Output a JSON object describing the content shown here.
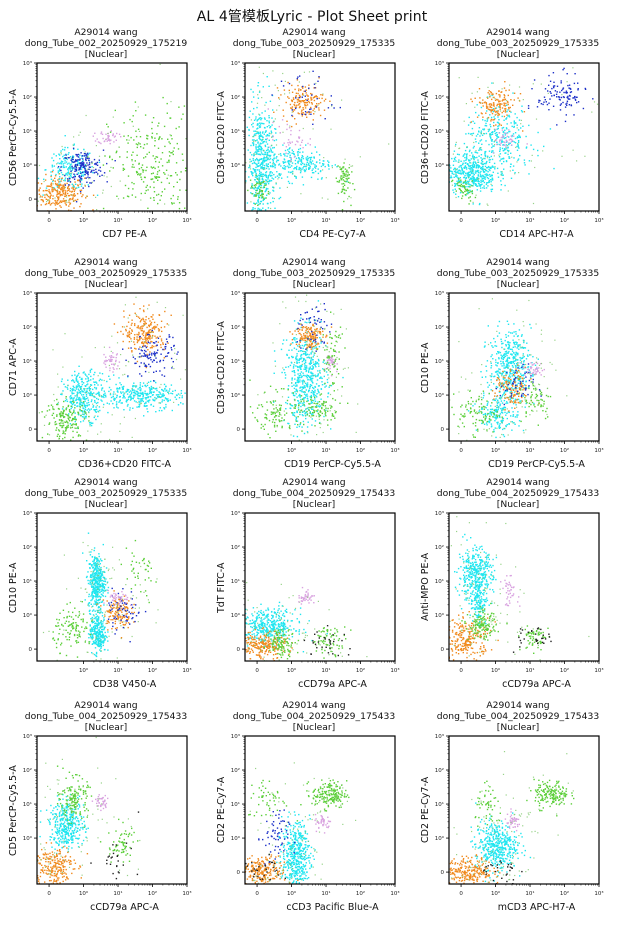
{
  "page": {
    "title": "AL 4管模板Lyric - Plot Sheet print"
  },
  "colors": {
    "cyan": "#1fe6f0",
    "orange": "#f08a1e",
    "green": "#5ccf3a",
    "blue": "#1c2fc8",
    "pink": "#d9a3e0",
    "teal": "#6bc7c0",
    "black": "#222222",
    "lightgreen": "#7ec86a"
  },
  "chart_data": [
    {
      "type": "scatter",
      "title_lines": [
        "A29014 wang",
        "dong_Tube_002_20250929_175219",
        "[Nuclear]"
      ],
      "xlabel": "CD7 PE-A",
      "ylabel": "CD56 PerCP-Cy5.5-A",
      "x_ticks": [
        "0",
        "10⁰",
        "10¹",
        "10²",
        "10³"
      ],
      "y_ticks": [
        "0",
        "10⁰",
        "10¹",
        "10²",
        "10³"
      ],
      "axis_scale": "biexponential",
      "populations": [
        {
          "name": "orange",
          "x": 0.3,
          "y": 0.2,
          "spread": [
            0.35,
            0.25
          ],
          "n": 260
        },
        {
          "name": "cyan",
          "x": 0.6,
          "y": 0.9,
          "spread": [
            0.35,
            0.3
          ],
          "n": 180
        },
        {
          "name": "blue",
          "x": 0.95,
          "y": 0.95,
          "spread": [
            0.3,
            0.25
          ],
          "n": 170
        },
        {
          "name": "pink",
          "x": 5,
          "y": 7,
          "spread": [
            0.15,
            0.1
          ],
          "n": 40
        },
        {
          "name": "green",
          "x": 80,
          "y": 0.9,
          "spread": [
            0.6,
            0.9
          ],
          "n": 260
        }
      ]
    },
    {
      "type": "scatter",
      "title_lines": [
        "A29014 wang",
        "dong_Tube_003_20250929_175335",
        "[Nuclear]"
      ],
      "xlabel": "CD4 PE-Cy7-A",
      "ylabel": "CD36+CD20 FITC-A",
      "x_ticks": [
        "0",
        "10⁰",
        "10¹",
        "10²",
        "10³"
      ],
      "y_ticks": [
        "10⁰",
        "10¹",
        "10²",
        "10³"
      ],
      "axis_scale": "biexponential",
      "populations": [
        {
          "name": "cyan",
          "x": 0.1,
          "y": 1.0,
          "spread": [
            0.2,
            0.9
          ],
          "n": 520
        },
        {
          "name": "cyan",
          "x": 1.5,
          "y": 1.2,
          "spread": [
            0.5,
            0.25
          ],
          "n": 240
        },
        {
          "name": "orange",
          "x": 2.0,
          "y": 80,
          "spread": [
            0.3,
            0.25
          ],
          "n": 160
        },
        {
          "name": "blue",
          "x": 2.5,
          "y": 90,
          "spread": [
            0.4,
            0.4
          ],
          "n": 40
        },
        {
          "name": "pink",
          "x": 0.9,
          "y": 6,
          "spread": [
            0.3,
            0.25
          ],
          "n": 40
        },
        {
          "name": "green",
          "x": 30,
          "y": 0.6,
          "spread": [
            0.1,
            0.3
          ],
          "n": 70
        },
        {
          "name": "green",
          "x": 0.05,
          "y": 0.3,
          "spread": [
            0.15,
            0.2
          ],
          "n": 50
        }
      ]
    },
    {
      "type": "scatter",
      "title_lines": [
        "A29014 wang",
        "dong_Tube_003_20250929_175335",
        "[Nuclear]"
      ],
      "xlabel": "CD14 APC-H7-A",
      "ylabel": "CD36+CD20 FITC-A",
      "x_ticks": [
        "0",
        "10⁰",
        "10¹",
        "10²",
        "10³"
      ],
      "y_ticks": [
        "10⁰",
        "10¹",
        "10²",
        "10³"
      ],
      "axis_scale": "biexponential",
      "populations": [
        {
          "name": "cyan",
          "x": 0.3,
          "y": 0.8,
          "spread": [
            0.35,
            0.3
          ],
          "n": 420
        },
        {
          "name": "cyan",
          "x": 1.2,
          "y": 6,
          "spread": [
            0.5,
            0.5
          ],
          "n": 320
        },
        {
          "name": "orange",
          "x": 1.0,
          "y": 60,
          "spread": [
            0.3,
            0.25
          ],
          "n": 150
        },
        {
          "name": "pink",
          "x": 1.8,
          "y": 6,
          "spread": [
            0.15,
            0.15
          ],
          "n": 40
        },
        {
          "name": "blue",
          "x": 80,
          "y": 110,
          "spread": [
            0.35,
            0.3
          ],
          "n": 110
        },
        {
          "name": "green",
          "x": 0.05,
          "y": 0.3,
          "spread": [
            0.15,
            0.2
          ],
          "n": 50
        }
      ]
    },
    {
      "type": "scatter",
      "title_lines": [
        "A29014 wang",
        "dong_Tube_003_20250929_175335",
        "[Nuclear]"
      ],
      "xlabel": "CD36+CD20 FITC-A",
      "ylabel": "CD71 APC-A",
      "x_ticks": [
        "0",
        "10⁰",
        "10¹",
        "10²",
        "10³"
      ],
      "y_ticks": [
        "0",
        "10⁰",
        "10¹",
        "10²",
        "10³"
      ],
      "axis_scale": "biexponential",
      "populations": [
        {
          "name": "cyan",
          "x": 1.0,
          "y": 1.0,
          "spread": [
            0.3,
            0.35
          ],
          "n": 320
        },
        {
          "name": "cyan",
          "x": 40,
          "y": 1.0,
          "spread": [
            0.6,
            0.2
          ],
          "n": 320
        },
        {
          "name": "green",
          "x": 0.5,
          "y": 0.3,
          "spread": [
            0.3,
            0.3
          ],
          "n": 160
        },
        {
          "name": "orange",
          "x": 60,
          "y": 70,
          "spread": [
            0.3,
            0.3
          ],
          "n": 220
        },
        {
          "name": "blue",
          "x": 100,
          "y": 15,
          "spread": [
            0.35,
            0.3
          ],
          "n": 110
        },
        {
          "name": "pink",
          "x": 6,
          "y": 10,
          "spread": [
            0.15,
            0.15
          ],
          "n": 40
        }
      ]
    },
    {
      "type": "scatter",
      "title_lines": [
        "A29014 wang",
        "dong_Tube_003_20250929_175335",
        "[Nuclear]"
      ],
      "xlabel": "CD19 PerCP-Cy5.5-A",
      "ylabel": "CD36+CD20 FITC-A",
      "x_ticks": [
        "10⁰",
        "10¹",
        "10²",
        "10³"
      ],
      "y_ticks": [
        "0",
        "10⁰",
        "10¹",
        "10²",
        "10³"
      ],
      "axis_scale": "biexponential",
      "populations": [
        {
          "name": "cyan",
          "x": 2.5,
          "y": 3,
          "spread": [
            0.3,
            0.7
          ],
          "n": 520
        },
        {
          "name": "orange",
          "x": 3,
          "y": 60,
          "spread": [
            0.2,
            0.2
          ],
          "n": 140
        },
        {
          "name": "blue",
          "x": 4,
          "y": 100,
          "spread": [
            0.25,
            0.4
          ],
          "n": 50
        },
        {
          "name": "pink",
          "x": 15,
          "y": 10,
          "spread": [
            0.1,
            0.15
          ],
          "n": 40
        },
        {
          "name": "green",
          "x": 0.6,
          "y": 0.5,
          "spread": [
            0.35,
            0.3
          ],
          "n": 110
        },
        {
          "name": "green",
          "x": 6,
          "y": 0.6,
          "spread": [
            0.3,
            0.2
          ],
          "n": 80
        },
        {
          "name": "green",
          "x": 15,
          "y": 15,
          "spread": [
            0.15,
            0.5
          ],
          "n": 60
        }
      ]
    },
    {
      "type": "scatter",
      "title_lines": [
        "A29014 wang",
        "dong_Tube_003_20250929_175335",
        "[Nuclear]"
      ],
      "xlabel": "CD19 PerCP-Cy5.5-A",
      "ylabel": "CD10 PE-A",
      "x_ticks": [
        "0",
        "10⁰",
        "10¹",
        "10²",
        "10³"
      ],
      "y_ticks": [
        "0",
        "10⁰",
        "10¹",
        "10²",
        "10³"
      ],
      "axis_scale": "biexponential",
      "populations": [
        {
          "name": "cyan",
          "x": 2.5,
          "y": 8,
          "spread": [
            0.3,
            0.5
          ],
          "n": 420
        },
        {
          "name": "cyan",
          "x": 1.2,
          "y": 0.5,
          "spread": [
            0.3,
            0.3
          ],
          "n": 180
        },
        {
          "name": "orange",
          "x": 3,
          "y": 1.5,
          "spread": [
            0.25,
            0.3
          ],
          "n": 130
        },
        {
          "name": "blue",
          "x": 4,
          "y": 2,
          "spread": [
            0.25,
            0.3
          ],
          "n": 50
        },
        {
          "name": "pink",
          "x": 12,
          "y": 6,
          "spread": [
            0.15,
            0.12
          ],
          "n": 40
        },
        {
          "name": "green",
          "x": 0.5,
          "y": 0.5,
          "spread": [
            0.3,
            0.3
          ],
          "n": 90
        },
        {
          "name": "green",
          "x": 14,
          "y": 0.9,
          "spread": [
            0.25,
            0.3
          ],
          "n": 60
        }
      ]
    },
    {
      "type": "scatter",
      "title_lines": [
        "A29014 wang",
        "dong_Tube_003_20250929_175335",
        "[Nuclear]"
      ],
      "xlabel": "CD38 V450-A",
      "ylabel": "CD10 PE-A",
      "x_ticks": [
        "10⁰",
        "10¹",
        "10²",
        "10³"
      ],
      "y_ticks": [
        "0",
        "10⁰",
        "10¹",
        "10²",
        "10³"
      ],
      "axis_scale": "biexponential",
      "populations": [
        {
          "name": "cyan",
          "x": 2.3,
          "y": 10,
          "spread": [
            0.12,
            0.4
          ],
          "n": 380
        },
        {
          "name": "cyan",
          "x": 2.5,
          "y": 0.5,
          "spread": [
            0.12,
            0.3
          ],
          "n": 260
        },
        {
          "name": "orange",
          "x": 9,
          "y": 1.3,
          "spread": [
            0.2,
            0.25
          ],
          "n": 130
        },
        {
          "name": "blue",
          "x": 15,
          "y": 1.5,
          "spread": [
            0.25,
            0.3
          ],
          "n": 60
        },
        {
          "name": "pink",
          "x": 10,
          "y": 3,
          "spread": [
            0.15,
            0.12
          ],
          "n": 40
        },
        {
          "name": "green",
          "x": 0.7,
          "y": 0.6,
          "spread": [
            0.3,
            0.3
          ],
          "n": 110
        },
        {
          "name": "green",
          "x": 40,
          "y": 15,
          "spread": [
            0.3,
            0.4
          ],
          "n": 40
        }
      ]
    },
    {
      "type": "scatter",
      "title_lines": [
        "A29014 wang",
        "dong_Tube_004_20250929_175433",
        "[Nuclear]"
      ],
      "xlabel": "cCD79a APC-A",
      "ylabel": "TdT FITC-A",
      "x_ticks": [
        "0",
        "10⁰",
        "10¹",
        "10²",
        "10³"
      ],
      "y_ticks": [
        "0",
        "10⁰",
        "10¹",
        "10²",
        "10³"
      ],
      "axis_scale": "biexponential",
      "populations": [
        {
          "name": "cyan",
          "x": 0.3,
          "y": 0.7,
          "spread": [
            0.4,
            0.25
          ],
          "n": 380
        },
        {
          "name": "orange",
          "x": 0.1,
          "y": 0.1,
          "spread": [
            0.35,
            0.2
          ],
          "n": 240
        },
        {
          "name": "green",
          "x": 0.7,
          "y": 0.2,
          "spread": [
            0.2,
            0.2
          ],
          "n": 100
        },
        {
          "name": "green",
          "x": 12,
          "y": 0.3,
          "spread": [
            0.25,
            0.2
          ],
          "n": 70
        },
        {
          "name": "black",
          "x": 10,
          "y": 0.25,
          "spread": [
            0.3,
            0.25
          ],
          "n": 30
        },
        {
          "name": "pink",
          "x": 2.5,
          "y": 3.5,
          "spread": [
            0.12,
            0.12
          ],
          "n": 40
        }
      ]
    },
    {
      "type": "scatter",
      "title_lines": [
        "A29014 wang",
        "dong_Tube_004_20250929_175433",
        "[Nuclear]"
      ],
      "xlabel": "cCD79a APC-A",
      "ylabel": "Anti-MPO PE-A",
      "x_ticks": [
        "0",
        "10⁰",
        "10¹",
        "10²",
        "10³"
      ],
      "y_ticks": [
        "0",
        "10⁰",
        "10¹",
        "10²",
        "10³"
      ],
      "axis_scale": "biexponential",
      "populations": [
        {
          "name": "cyan",
          "x": 0.4,
          "y": 15,
          "spread": [
            0.25,
            0.4
          ],
          "n": 380
        },
        {
          "name": "cyan",
          "x": 0.5,
          "y": 2.5,
          "spread": [
            0.1,
            0.35
          ],
          "n": 100
        },
        {
          "name": "orange",
          "x": 0.1,
          "y": 0.3,
          "spread": [
            0.35,
            0.3
          ],
          "n": 240
        },
        {
          "name": "green",
          "x": 0.6,
          "y": 0.7,
          "spread": [
            0.2,
            0.2
          ],
          "n": 130
        },
        {
          "name": "green",
          "x": 13,
          "y": 0.35,
          "spread": [
            0.2,
            0.2
          ],
          "n": 60
        },
        {
          "name": "black",
          "x": 10,
          "y": 0.3,
          "spread": [
            0.3,
            0.2
          ],
          "n": 30
        },
        {
          "name": "pink",
          "x": 2.5,
          "y": 5,
          "spread": [
            0.12,
            0.2
          ],
          "n": 40
        }
      ]
    },
    {
      "type": "scatter",
      "title_lines": [
        "A29014 wang",
        "dong_Tube_004_20250929_175433",
        "[Nuclear]"
      ],
      "xlabel": "cCD79a APC-A",
      "ylabel": "CD5 PerCP-Cy5.5-A",
      "x_ticks": [
        "0",
        "10⁰",
        "10¹",
        "10²",
        "10³"
      ],
      "y_ticks": [
        "10⁰",
        "10¹",
        "10²",
        "10³"
      ],
      "axis_scale": "biexponential",
      "populations": [
        {
          "name": "cyan",
          "x": 0.5,
          "y": 2.5,
          "spread": [
            0.25,
            0.35
          ],
          "n": 360
        },
        {
          "name": "orange",
          "x": 0.1,
          "y": 0.2,
          "spread": [
            0.3,
            0.3
          ],
          "n": 220
        },
        {
          "name": "green",
          "x": 0.7,
          "y": 15,
          "spread": [
            0.2,
            0.3
          ],
          "n": 140
        },
        {
          "name": "pink",
          "x": 3,
          "y": 12,
          "spread": [
            0.1,
            0.12
          ],
          "n": 40
        },
        {
          "name": "green",
          "x": 12,
          "y": 0.8,
          "spread": [
            0.2,
            0.3
          ],
          "n": 60
        },
        {
          "name": "black",
          "x": 10,
          "y": 0.5,
          "spread": [
            0.3,
            0.3
          ],
          "n": 25
        }
      ]
    },
    {
      "type": "scatter",
      "title_lines": [
        "A29014 wang",
        "dong_Tube_004_20250929_175433",
        "[Nuclear]"
      ],
      "xlabel": "cCD3 Pacific Blue-A",
      "ylabel": "CD2 PE-Cy7-A",
      "x_ticks": [
        "0",
        "10⁰",
        "10¹",
        "10²",
        "10³"
      ],
      "y_ticks": [
        "0",
        "10⁰",
        "10¹",
        "10²",
        "10³"
      ],
      "axis_scale": "biexponential",
      "populations": [
        {
          "name": "cyan",
          "x": 1.3,
          "y": 0.5,
          "spread": [
            0.2,
            0.5
          ],
          "n": 440
        },
        {
          "name": "orange",
          "x": 0.1,
          "y": 0.05,
          "spread": [
            0.35,
            0.2
          ],
          "n": 230
        },
        {
          "name": "black",
          "x": 0.15,
          "y": 0.05,
          "spread": [
            0.3,
            0.2
          ],
          "n": 30
        },
        {
          "name": "blue",
          "x": 0.5,
          "y": 1,
          "spread": [
            0.2,
            0.4
          ],
          "n": 60
        },
        {
          "name": "green",
          "x": 12,
          "y": 20,
          "spread": [
            0.25,
            0.2
          ],
          "n": 170
        },
        {
          "name": "pink",
          "x": 8,
          "y": 3,
          "spread": [
            0.12,
            0.12
          ],
          "n": 40
        },
        {
          "name": "green",
          "x": 0.3,
          "y": 15,
          "spread": [
            0.3,
            0.3
          ],
          "n": 50
        }
      ]
    },
    {
      "type": "scatter",
      "title_lines": [
        "A29014 wang",
        "dong_Tube_004_20250929_175433",
        "[Nuclear]"
      ],
      "xlabel": "mCD3 APC-H7-A",
      "ylabel": "CD2 PE-Cy7-A",
      "x_ticks": [
        "0",
        "10⁰",
        "10¹",
        "10²",
        "10³"
      ],
      "y_ticks": [
        "0",
        "10⁰",
        "10¹",
        "10²",
        "10³"
      ],
      "axis_scale": "biexponential",
      "populations": [
        {
          "name": "cyan",
          "x": 1.0,
          "y": 0.8,
          "spread": [
            0.3,
            0.35
          ],
          "n": 420
        },
        {
          "name": "orange",
          "x": 0.2,
          "y": 0.05,
          "spread": [
            0.35,
            0.2
          ],
          "n": 240
        },
        {
          "name": "black",
          "x": 1.0,
          "y": 0.05,
          "spread": [
            0.3,
            0.2
          ],
          "n": 30
        },
        {
          "name": "green",
          "x": 40,
          "y": 20,
          "spread": [
            0.25,
            0.2
          ],
          "n": 170
        },
        {
          "name": "green",
          "x": 0.8,
          "y": 8,
          "spread": [
            0.2,
            0.3
          ],
          "n": 50
        },
        {
          "name": "pink",
          "x": 3,
          "y": 3,
          "spread": [
            0.12,
            0.12
          ],
          "n": 40
        }
      ]
    }
  ]
}
